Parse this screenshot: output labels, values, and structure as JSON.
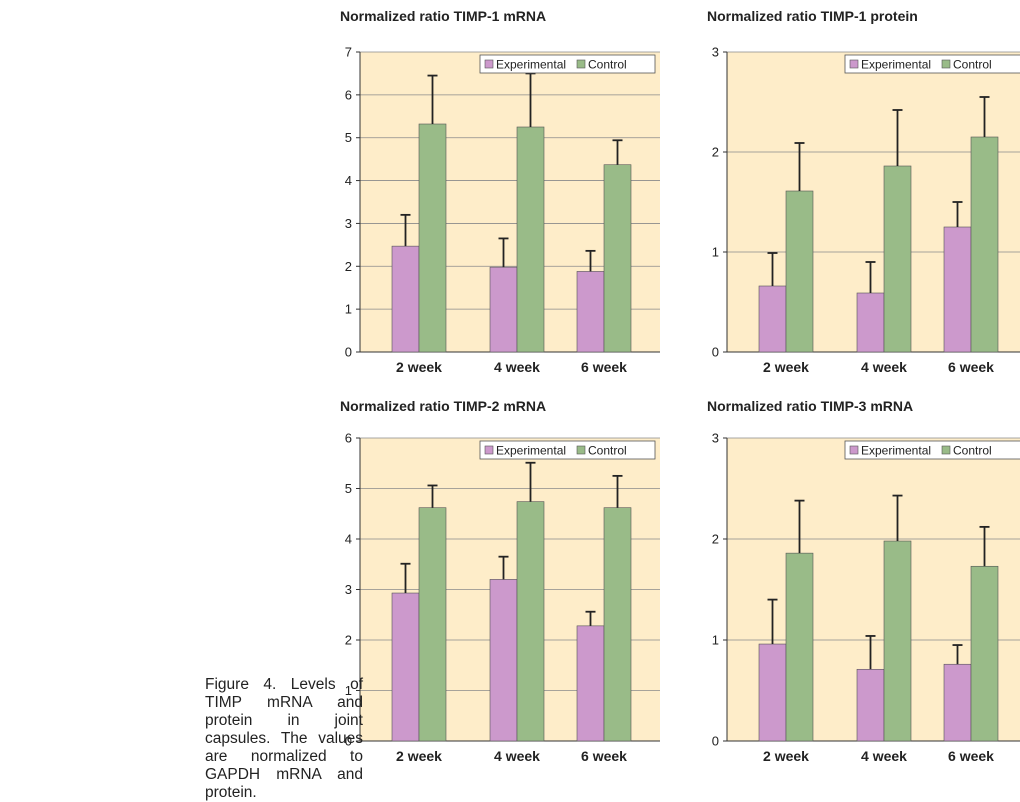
{
  "colors": {
    "plot_bg": "#feedc9",
    "experimental": "#cc99cc",
    "control": "#99bb88",
    "error_bar": "#222222",
    "grid": "#8a8a8a"
  },
  "caption": "Figure 4. Levels of TIMP mRNA and protein in joint capsules. The values are normalized to GAPDH mRNA and protein.",
  "chart_data": [
    {
      "type": "bar",
      "title": "Normalized ratio  TIMP-1 mRNA",
      "categories": [
        "2 week",
        "4 week",
        "6 week"
      ],
      "ylim": [
        0,
        7
      ],
      "yticks": [
        0,
        1,
        2,
        3,
        4,
        5,
        6,
        7
      ],
      "grid": true,
      "legend_position": "top-right",
      "series": [
        {
          "name": "Experimental",
          "values": [
            2.47,
            1.98,
            1.88
          ],
          "errors": [
            0.73,
            0.67,
            0.48
          ]
        },
        {
          "name": "Control",
          "values": [
            5.32,
            5.25,
            4.37
          ],
          "errors": [
            1.13,
            1.25,
            0.57
          ]
        }
      ]
    },
    {
      "type": "bar",
      "title": "Normalized ratio  TIMP-1 protein",
      "categories": [
        "2 week",
        "4 week",
        "6 week"
      ],
      "ylim": [
        0,
        3
      ],
      "yticks": [
        0,
        1,
        2,
        3
      ],
      "grid": true,
      "legend_position": "top-right",
      "series": [
        {
          "name": "Experimental",
          "values": [
            0.66,
            0.59,
            1.25
          ],
          "errors": [
            0.33,
            0.31,
            0.25
          ]
        },
        {
          "name": "Control",
          "values": [
            1.61,
            1.86,
            2.15
          ],
          "errors": [
            0.48,
            0.56,
            0.4
          ]
        }
      ]
    },
    {
      "type": "bar",
      "title": "Normalized ratio  TIMP-2 mRNA",
      "categories": [
        "2 week",
        "4 week",
        "6 week"
      ],
      "ylim": [
        0,
        6
      ],
      "yticks": [
        0,
        1,
        2,
        3,
        4,
        5,
        6
      ],
      "grid": true,
      "legend_position": "top-right",
      "series": [
        {
          "name": "Experimental",
          "values": [
            2.93,
            3.2,
            2.28
          ],
          "errors": [
            0.58,
            0.45,
            0.28
          ]
        },
        {
          "name": "Control",
          "values": [
            4.62,
            4.74,
            4.62
          ],
          "errors": [
            0.44,
            0.77,
            0.63
          ]
        }
      ]
    },
    {
      "type": "bar",
      "title": "Normalized ratio  TIMP-3 mRNA",
      "categories": [
        "2 week",
        "4 week",
        "6 week"
      ],
      "ylim": [
        0,
        3
      ],
      "yticks": [
        0,
        1,
        2,
        3
      ],
      "grid": true,
      "legend_position": "top-right",
      "series": [
        {
          "name": "Experimental",
          "values": [
            0.96,
            0.71,
            0.76
          ],
          "errors": [
            0.44,
            0.33,
            0.19
          ]
        },
        {
          "name": "Control",
          "values": [
            1.86,
            1.98,
            1.73
          ],
          "errors": [
            0.52,
            0.45,
            0.39
          ]
        }
      ]
    }
  ]
}
